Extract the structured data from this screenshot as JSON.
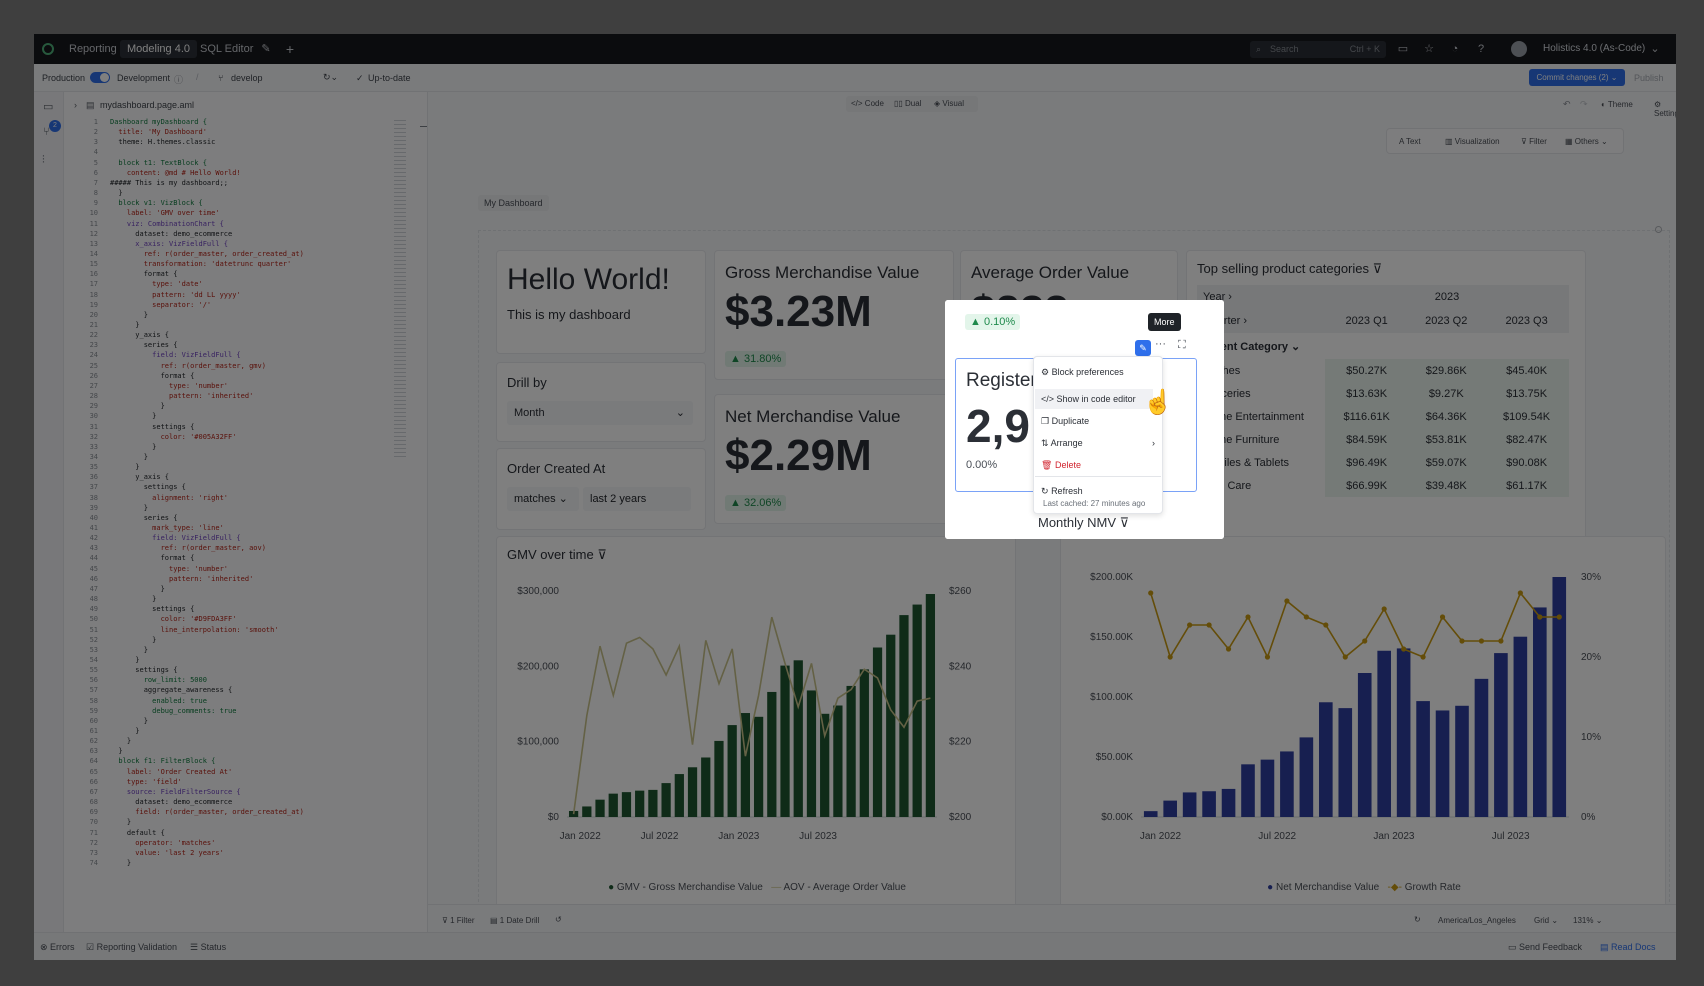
{
  "topnav": {
    "tabs": [
      "Reporting",
      "Modeling 4.0",
      "SQL Editor"
    ],
    "search_placeholder": "Search",
    "search_shortcut": "Ctrl + K",
    "workspace": "Holistics 4.0 (As-Code)"
  },
  "subbar": {
    "production": "Production",
    "development": "Development",
    "branch": "develop",
    "status": "Up-to-date",
    "commit": "Commit changes (2)",
    "publish": "Publish"
  },
  "editor": {
    "filename": "mydashboard.page.aml",
    "view_modes": [
      "Code",
      "Dual",
      "Visual"
    ],
    "theme": "Theme",
    "settings": "Settings",
    "badge": "2"
  },
  "toolbar": {
    "items": [
      "Text",
      "Visualization",
      "Filter",
      "Others"
    ]
  },
  "dashboard": {
    "tag": "My Dashboard",
    "hello_title": "Hello World!",
    "hello_sub": "This is my dashboard",
    "drill_label": "Drill by",
    "drill_value": "Month",
    "filter_label": "Order Created At",
    "filter_op": "matches",
    "filter_value": "last 2 years",
    "gmv": {
      "title": "Gross Merchandise Value",
      "value": "$3.23M",
      "delta": "31.80%"
    },
    "nmv": {
      "title": "Net Merchandise Value",
      "value": "$2.29M",
      "delta": "32.06%"
    },
    "aov": {
      "title": "Average Order Value",
      "value": "$233",
      "delta": "0.10%"
    },
    "reg": {
      "title": "Register",
      "value": "2,9",
      "delta": "0.00%"
    }
  },
  "pivot": {
    "title": "Top selling product categories",
    "year_label": "Year",
    "year_value": "2023",
    "quarter_label": "Quarter",
    "quarters": [
      "2023 Q1",
      "2023 Q2",
      "2023 Q3"
    ],
    "category_label": "Parent Category",
    "rows": [
      {
        "name": "Clothes",
        "values": [
          "$50.27K",
          "$29.86K",
          "$45.40K"
        ]
      },
      {
        "name": "Groceries",
        "values": [
          "$13.63K",
          "$9.27K",
          "$13.75K"
        ]
      },
      {
        "name": "Home Entertainment",
        "values": [
          "$116.61K",
          "$64.36K",
          "$109.54K"
        ]
      },
      {
        "name": "Home Furniture",
        "values": [
          "$84.59K",
          "$53.81K",
          "$82.47K"
        ]
      },
      {
        "name": "Mobiles & Tablets",
        "values": [
          "$96.49K",
          "$59.07K",
          "$90.08K"
        ]
      },
      {
        "name": "Skin Care",
        "values": [
          "$66.99K",
          "$39.48K",
          "$61.17K"
        ]
      }
    ]
  },
  "menu": {
    "tooltip": "More",
    "items": [
      "Block preferences",
      "Show in code editor",
      "Duplicate",
      "Arrange",
      "Delete",
      "Refresh"
    ],
    "cached": "Last cached: 27 minutes ago"
  },
  "statusbar": {
    "filter": "1 Filter",
    "drill": "1 Date Drill",
    "timezone": "America/Los_Angeles",
    "grid": "Grid",
    "zoom": "131%",
    "errors": "Errors",
    "validation": "Reporting Validation",
    "status": "Status",
    "feedback": "Send Feedback",
    "docs": "Read Docs"
  },
  "chart_data": [
    {
      "type": "bar",
      "title": "GMV over time",
      "x_ticks": [
        "Jan 2022",
        "Jul 2022",
        "Jan 2023",
        "Jul 2023"
      ],
      "y_ticks": [
        "$0",
        "$100,000",
        "$200,000",
        "$300,000"
      ],
      "y2_ticks": [
        "$200",
        "$220",
        "$240",
        "$260"
      ],
      "ylim": [
        0,
        300000
      ],
      "y2lim": [
        190,
        268
      ],
      "series": [
        {
          "name": "GMV - Gross Merchandise Value",
          "type": "bar",
          "color": "#1e5631",
          "values": [
            8000,
            14000,
            23000,
            31000,
            33000,
            35000,
            36000,
            45000,
            57000,
            66000,
            79000,
            101000,
            122000,
            138000,
            133000,
            166000,
            201000,
            208000,
            168000,
            137000,
            148000,
            174000,
            196000,
            225000,
            242000,
            268000,
            282000,
            296000
          ]
        },
        {
          "name": "AOV - Average Order Value",
          "type": "line",
          "color": "#c8c38a",
          "values": [
            191,
            225,
            249,
            232,
            250,
            252,
            248,
            239,
            249,
            215,
            251,
            236,
            248,
            211,
            232,
            259,
            243,
            228,
            243,
            218,
            231,
            234,
            241,
            238,
            227,
            221,
            230,
            231
          ]
        }
      ]
    },
    {
      "type": "bar",
      "title": "Monthly NMV",
      "x_ticks": [
        "Jan 2022",
        "Jul 2022",
        "Jan 2023",
        "Jul 2023"
      ],
      "y_ticks": [
        "$0.00K",
        "$50.00K",
        "$100.00K",
        "$150.00K",
        "$200.00K"
      ],
      "y2_ticks": [
        "0%",
        "10%",
        "20%",
        "30%"
      ],
      "ylim": [
        0,
        205000
      ],
      "y2lim": [
        0,
        30
      ],
      "series": [
        {
          "name": "Net Merchandise Value",
          "type": "bar",
          "color": "#2f3fa0",
          "values": [
            5000,
            14000,
            21000,
            22000,
            24000,
            45000,
            49000,
            56000,
            68000,
            98000,
            93000,
            123000,
            142000,
            144000,
            99000,
            91000,
            95000,
            118000,
            140000,
            154000,
            179000,
            205000
          ]
        },
        {
          "name": "Growth Rate",
          "type": "line",
          "color": "#c99a12",
          "values": [
            28,
            20,
            24,
            24,
            21,
            25,
            20,
            27,
            25,
            24,
            20,
            22,
            26,
            21,
            20,
            25,
            22,
            22,
            22,
            28,
            25,
            25
          ]
        }
      ]
    }
  ]
}
